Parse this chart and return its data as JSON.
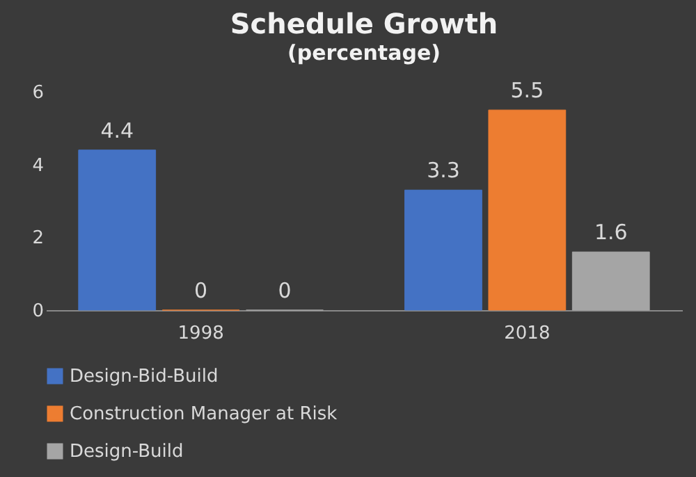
{
  "chart_data": {
    "type": "bar",
    "title": "Schedule Growth",
    "subtitle": "(percentage)",
    "categories": [
      "1998",
      "2018"
    ],
    "series": [
      {
        "name": "Design-Bid-Build",
        "color": "#4472c4",
        "values": [
          4.4,
          3.3
        ]
      },
      {
        "name": "Construction Manager at Risk",
        "color": "#ed7d31",
        "values": [
          0,
          5.5
        ]
      },
      {
        "name": "Design-Build",
        "color": "#a5a5a5",
        "values": [
          0,
          1.6
        ]
      }
    ],
    "ylim": [
      0,
      6
    ],
    "yticks": [
      0,
      2,
      4,
      6
    ],
    "grid": false,
    "legend": "bottom",
    "data_labels": true
  }
}
